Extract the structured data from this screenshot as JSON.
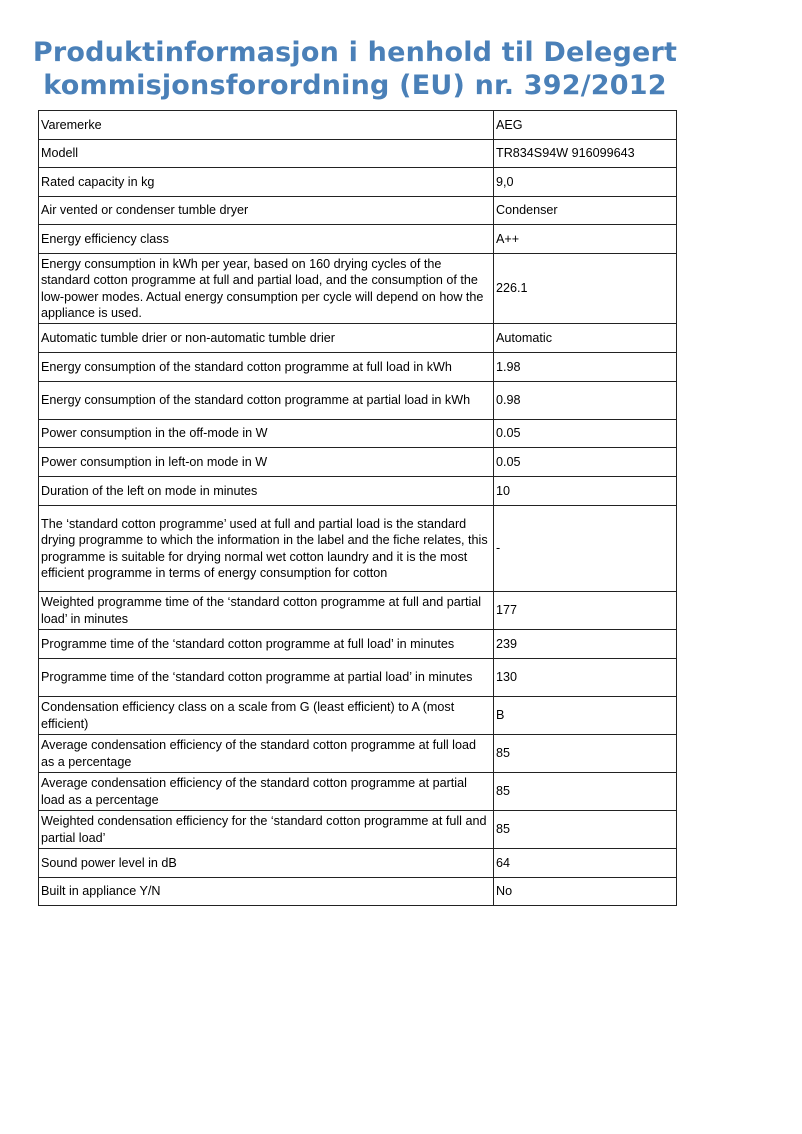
{
  "title": {
    "line1": "Produktinformasjon i henhold til Delegert",
    "line2": "kommisjonsforordning (EU) nr. 392/2012"
  },
  "rows": [
    {
      "label": "Varemerke",
      "value": "AEG"
    },
    {
      "label": "Modell",
      "value": "TR834S94W 916099643"
    },
    {
      "label": "Rated capacity in kg",
      "value": "9,0"
    },
    {
      "label": "Air vented or condenser tumble dryer",
      "value": "Condenser"
    },
    {
      "label": "Energy efficiency class",
      "value": "A++"
    },
    {
      "label": "Energy consumption in kWh per year, based on 160 drying cycles of the standard cotton programme at full and partial load, and the consumption of the low-power modes. Actual energy consumption per cycle will depend on how the appliance is used.",
      "value": "226.1"
    },
    {
      "label": "Automatic tumble drier or non-automatic tumble drier",
      "value": "Automatic"
    },
    {
      "label": "Energy consumption of the standard cotton programme at full load in kWh",
      "value": "1.98"
    },
    {
      "label": "Energy consumption of the standard cotton programme at partial load in kWh",
      "value": "0.98"
    },
    {
      "label": "Power consumption in the off-mode in W",
      "value": "0.05"
    },
    {
      "label": "Power consumption in left-on mode in W",
      "value": "0.05"
    },
    {
      "label": "Duration of the left on mode in minutes",
      "value": "10"
    },
    {
      "label": "The ‘standard cotton programme’ used at full and partial load is the standard drying programme to which the information in the label and the fiche relates, this programme is suitable for drying normal wet cotton laundry and it is the most efficient programme in terms of energy consumption for cotton",
      "value": "-"
    },
    {
      "label": "Weighted programme time of the ‘standard cotton programme at full and partial load’ in minutes",
      "value": "177"
    },
    {
      "label": "Programme time of the ‘standard cotton programme at full load’ in minutes",
      "value": "239"
    },
    {
      "label": "Programme time of the ‘standard cotton programme at partial load’ in minutes",
      "value": "130"
    },
    {
      "label": "Condensation efficiency class on a scale from G (least efficient) to A (most efficient)",
      "value": "B"
    },
    {
      "label": "Average condensation efficiency of the standard cotton programme at full load as a percentage",
      "value": "85"
    },
    {
      "label": "Average condensation efficiency of the standard cotton programme at partial load as a percentage",
      "value": "85"
    },
    {
      "label": "Weighted condensation efficiency for the ‘standard cotton programme at full and partial load’",
      "value": "85"
    },
    {
      "label": "Sound power level in dB",
      "value": "64"
    },
    {
      "label": "Built in appliance Y/N",
      "value": "No"
    }
  ]
}
